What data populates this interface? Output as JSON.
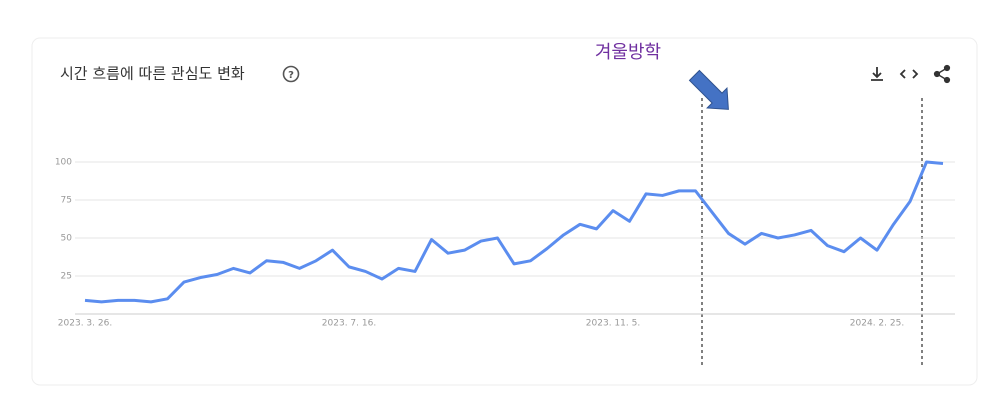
{
  "chart_data": {
    "type": "line",
    "title": "시간 흐름에 따른 관심도 변화",
    "annotation": "겨울방학",
    "x": [
      "2023. 3. 26.",
      null,
      null,
      null,
      null,
      null,
      null,
      null,
      null,
      null,
      null,
      null,
      null,
      null,
      null,
      null,
      "2023. 7. 16.",
      null,
      null,
      null,
      null,
      null,
      null,
      null,
      null,
      null,
      null,
      null,
      null,
      null,
      null,
      null,
      "2023. 11. 5.",
      null,
      null,
      null,
      null,
      null,
      null,
      null,
      null,
      null,
      null,
      null,
      null,
      null,
      null,
      null,
      "2024. 2. 25.",
      null,
      null,
      null,
      null
    ],
    "series": [
      {
        "color": "#5b8def",
        "values": [
          9,
          8,
          9,
          9,
          8,
          10,
          21,
          24,
          26,
          30,
          27,
          35,
          34,
          30,
          35,
          42,
          31,
          28,
          23,
          30,
          28,
          49,
          40,
          42,
          48,
          50,
          33,
          35,
          43,
          52,
          59,
          56,
          68,
          61,
          79,
          78,
          81,
          81,
          67,
          53,
          46,
          53,
          50,
          52,
          55,
          45,
          41,
          50,
          42,
          59,
          74,
          100,
          99
        ]
      }
    ],
    "ylim": [
      0,
      100
    ],
    "yticks": [
      25,
      50,
      75,
      100
    ],
    "grid": true
  }
}
